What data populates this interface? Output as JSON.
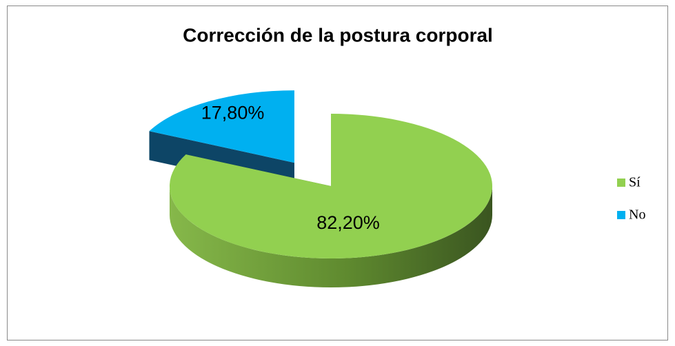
{
  "chart_data": {
    "type": "pie",
    "title": "Corrección de la postura corporal",
    "categories": [
      "Sí",
      "No"
    ],
    "values": [
      82.2,
      17.8
    ],
    "value_labels": [
      "82,20%",
      "17,80%"
    ],
    "colors": [
      "#92d050",
      "#00b0f0"
    ],
    "legend": "right"
  }
}
